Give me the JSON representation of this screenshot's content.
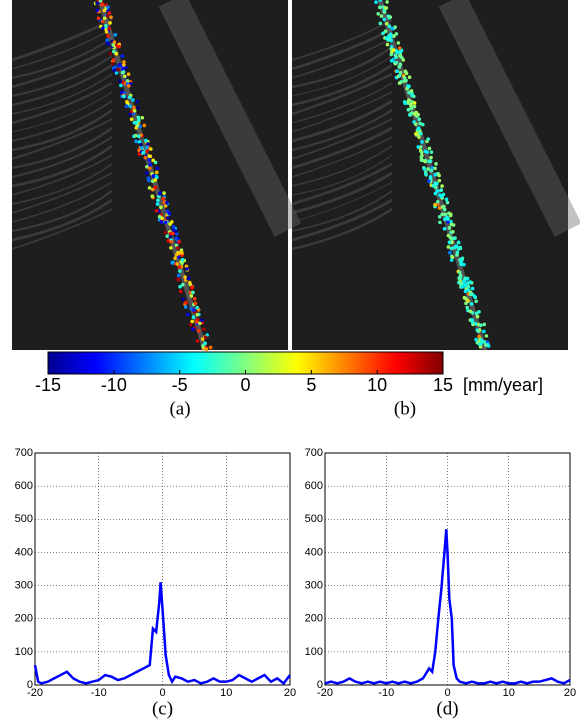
{
  "panels": [
    {
      "label": "(a)"
    },
    {
      "label": "(b)"
    }
  ],
  "colorbar": {
    "lim": [
      -15,
      15
    ],
    "ticks": [
      -15,
      -10,
      -5,
      0,
      5,
      10,
      15
    ],
    "unit": "[mm/year]"
  },
  "chart_data": [
    {
      "type": "line",
      "caption": "(c)",
      "color": "#0000ff",
      "xlim": [
        -20,
        20
      ],
      "ylim": [
        0,
        700
      ],
      "xticks": [
        -20,
        -10,
        0,
        10,
        20
      ],
      "yticks": [
        0,
        100,
        200,
        300,
        400,
        500,
        600,
        700
      ],
      "grid": true,
      "x": [
        -20,
        -19.5,
        -19,
        -18,
        -17,
        -16,
        -15,
        -14,
        -13,
        -12,
        -11,
        -10,
        -9,
        -8,
        -7,
        -6,
        -5,
        -4,
        -3,
        -2,
        -1.5,
        -1,
        -0.5,
        -0.3,
        0,
        0.5,
        1,
        1.5,
        2,
        3,
        4,
        5,
        6,
        7,
        8,
        9,
        10,
        11,
        12,
        13,
        14,
        15,
        16,
        17,
        18,
        19,
        20
      ],
      "values": [
        60,
        10,
        5,
        10,
        20,
        30,
        40,
        20,
        10,
        5,
        10,
        15,
        30,
        25,
        15,
        20,
        30,
        40,
        50,
        60,
        170,
        160,
        250,
        310,
        230,
        90,
        30,
        10,
        25,
        20,
        10,
        15,
        5,
        10,
        20,
        10,
        10,
        15,
        30,
        20,
        10,
        20,
        30,
        10,
        20,
        5,
        30
      ]
    },
    {
      "type": "line",
      "caption": "(d)",
      "color": "#0000ff",
      "xlim": [
        -20,
        20
      ],
      "ylim": [
        0,
        700
      ],
      "xticks": [
        -20,
        -10,
        0,
        10,
        20
      ],
      "yticks": [
        0,
        100,
        200,
        300,
        400,
        500,
        600,
        700
      ],
      "grid": true,
      "x": [
        -20,
        -19,
        -18,
        -17,
        -16,
        -15,
        -14,
        -13,
        -12,
        -11,
        -10,
        -9,
        -8,
        -7,
        -6,
        -5,
        -4,
        -3,
        -2.5,
        -2,
        -1.5,
        -1,
        -0.5,
        -0.2,
        0,
        0.3,
        0.7,
        1,
        1.5,
        2,
        3,
        4,
        5,
        6,
        7,
        8,
        9,
        10,
        11,
        12,
        13,
        14,
        15,
        16,
        17,
        18,
        19,
        20
      ],
      "values": [
        5,
        10,
        5,
        10,
        20,
        10,
        5,
        10,
        5,
        10,
        5,
        10,
        5,
        10,
        5,
        10,
        20,
        50,
        40,
        100,
        200,
        290,
        400,
        470,
        400,
        260,
        200,
        60,
        20,
        10,
        5,
        10,
        5,
        5,
        10,
        5,
        10,
        5,
        5,
        10,
        5,
        10,
        10,
        15,
        20,
        10,
        5,
        15
      ]
    }
  ]
}
